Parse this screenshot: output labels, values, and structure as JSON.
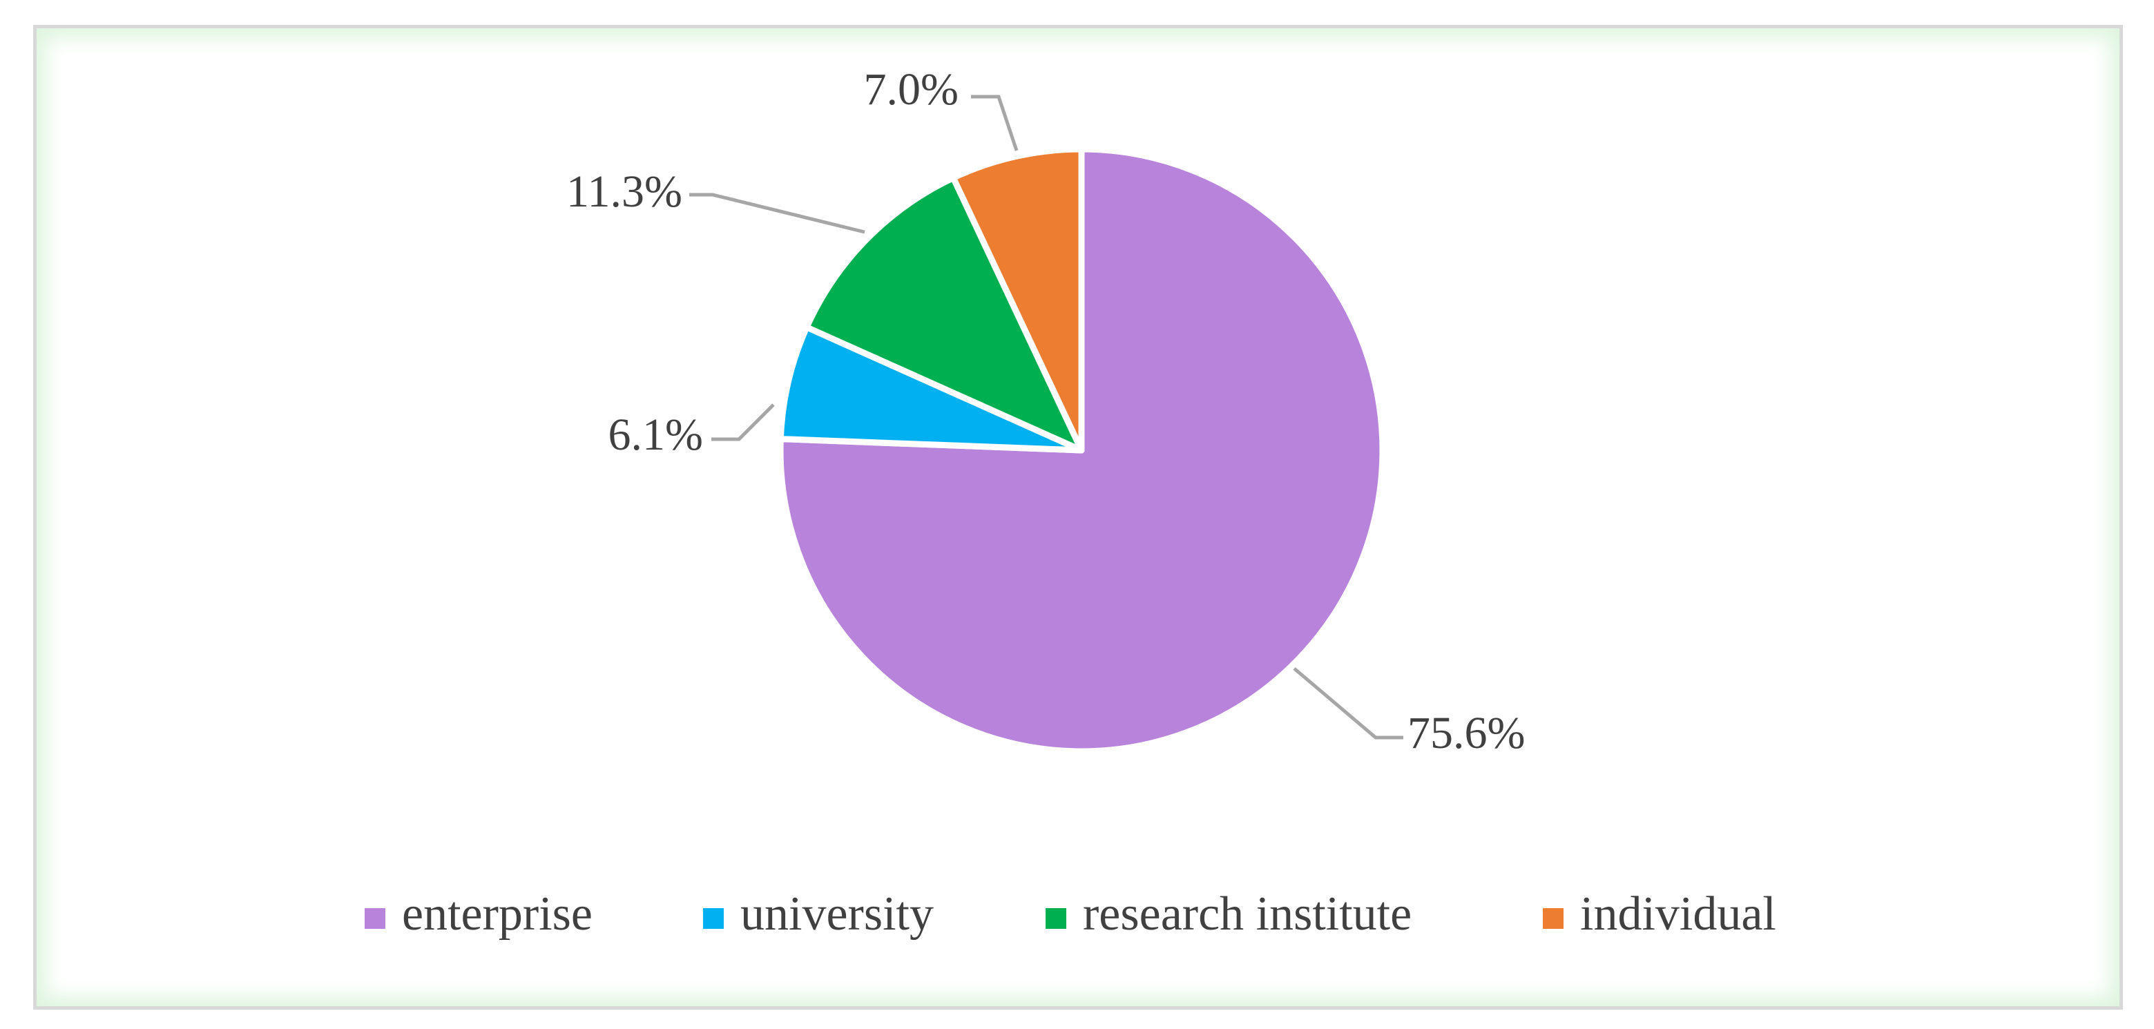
{
  "chart_data": {
    "type": "pie",
    "start_angle_deg": 0,
    "direction": "clockwise",
    "slices": [
      {
        "name": "enterprise",
        "value": 75.6,
        "label": "75.6%",
        "color": "#b884db"
      },
      {
        "name": "university",
        "value": 6.1,
        "label": "6.1%",
        "color": "#00b0f0"
      },
      {
        "name": "research institute",
        "value": 11.3,
        "label": "11.3%",
        "color": "#00b050"
      },
      {
        "name": "individual",
        "value": 7.0,
        "label": "7.0%",
        "color": "#ed7d31"
      }
    ],
    "legend_position": "bottom",
    "leader_line_color": "#a6a6a6",
    "border_glow_color": "#c6efce"
  }
}
